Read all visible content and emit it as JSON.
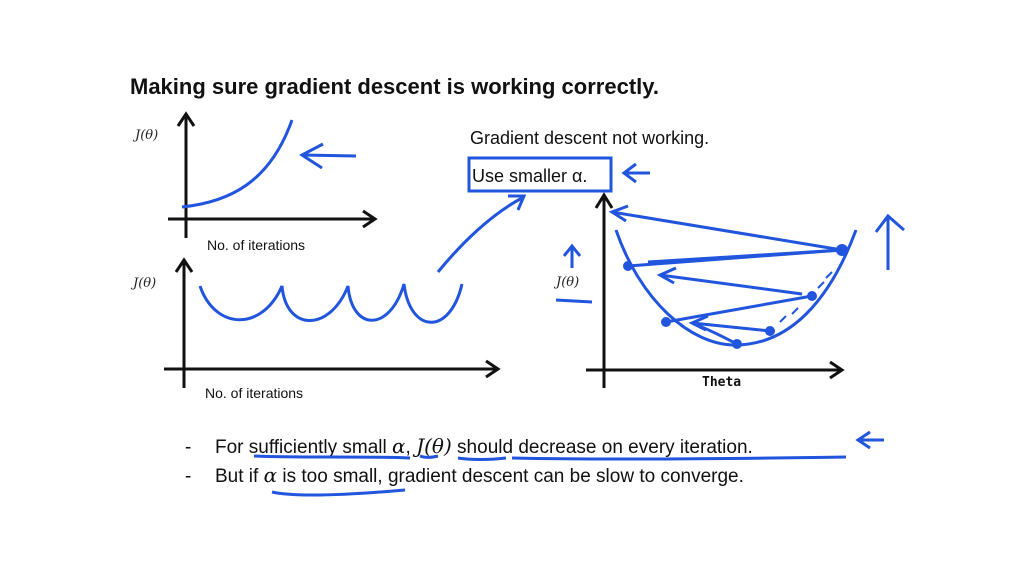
{
  "slide": {
    "title": "Making sure gradient descent is working correctly.",
    "plot1": {
      "ylabel": "J(θ)",
      "xlabel": "No. of iterations"
    },
    "plot2": {
      "ylabel": "J(θ)",
      "xlabel": "No. of iterations"
    },
    "plot3": {
      "ylabel": "J(θ)",
      "xlabel": "Theta"
    },
    "note_line1": "Gradient descent not working.",
    "note_line2": "Use smaller α.",
    "bullets": [
      {
        "parts": [
          "For sufficiently small ",
          "α",
          ", ",
          "J(θ)",
          " should decrease on every iteration."
        ]
      },
      {
        "parts": [
          "But if ",
          "α",
          " is too small, gradient descent can be slow to converge."
        ]
      }
    ],
    "annotation_color": "#2255dd"
  }
}
